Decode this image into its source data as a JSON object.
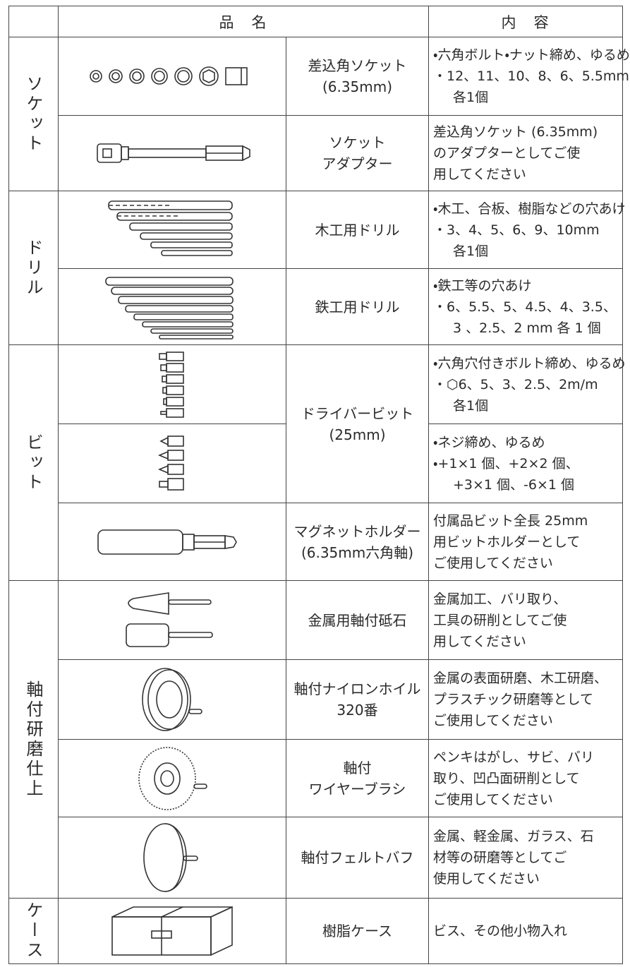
{
  "header": {
    "name": "品　名",
    "content": "内　容"
  },
  "groups": [
    {
      "label": "ソケット",
      "items": [
        {
          "name": [
            "差込角ソケット",
            "(6.35mm)"
          ],
          "content": [
            "・六角ボルト・ナット締め、ゆるめ",
            "・12、11、10、8、6、5.5mm",
            "各1個"
          ]
        },
        {
          "name": [
            "ソケット",
            "アダプター"
          ],
          "content": [
            "差込角ソケット (6.35mm)",
            "のアダプターとしてご使",
            "用してください"
          ]
        }
      ]
    },
    {
      "label": "ドリル",
      "items": [
        {
          "name": [
            "木工用ドリル"
          ],
          "content": [
            "・木工、合板、樹脂などの穴あけ",
            "・3、4、5、6、9、10mm",
            "各1個"
          ]
        },
        {
          "name": [
            "鉄工用ドリル"
          ],
          "content": [
            "・鉄工等の穴あけ",
            "・6、5.5、5、4.5、4、3.5、",
            "3 、2.5、2 mm 各 1 個"
          ]
        }
      ]
    },
    {
      "label": "ビット",
      "items": [
        {
          "name": [
            "ドライバービット",
            "(25mm)"
          ],
          "contents": [
            [
              "・六角穴付きボルト締め、ゆるめ",
              "・⬡6、5、3、2.5、2m/m",
              "各1個"
            ],
            [
              "・ネジ締め、ゆるめ",
              "・+1×1 個、+2×2 個、",
              "+3×1 個、-6×1 個"
            ]
          ]
        },
        {
          "name": [
            "マグネットホルダー",
            "(6.35mm六角軸)"
          ],
          "content": [
            "付属品ビット全長 25mm",
            "用ビットホルダーとして",
            "ご使用してください"
          ]
        }
      ]
    },
    {
      "label": "軸付研磨仕上",
      "items": [
        {
          "name": [
            "金属用軸付砥石"
          ],
          "content": [
            "金属加工、バリ取り、",
            "工具の研削としてご使",
            "用してください"
          ]
        },
        {
          "name": [
            "軸付ナイロンホイル",
            "320番"
          ],
          "content": [
            "金属の表面研磨、木工研磨、",
            "プラスチック研磨等として",
            "ご使用してください"
          ]
        },
        {
          "name": [
            "軸付",
            "ワイヤーブラシ"
          ],
          "content": [
            "ペンキはがし、サビ、バリ",
            "取り、凹凸面研削として",
            "ご使用してください"
          ]
        },
        {
          "name": [
            "軸付フェルトバフ"
          ],
          "content": [
            "金属、軽金属、ガラス、石",
            "材等の研磨等としてご",
            "使用してください"
          ]
        }
      ]
    },
    {
      "label": "ケース",
      "items": [
        {
          "name": [
            "樹脂ケース"
          ],
          "content": [
            "ビス、その他小物入れ"
          ]
        }
      ]
    }
  ]
}
